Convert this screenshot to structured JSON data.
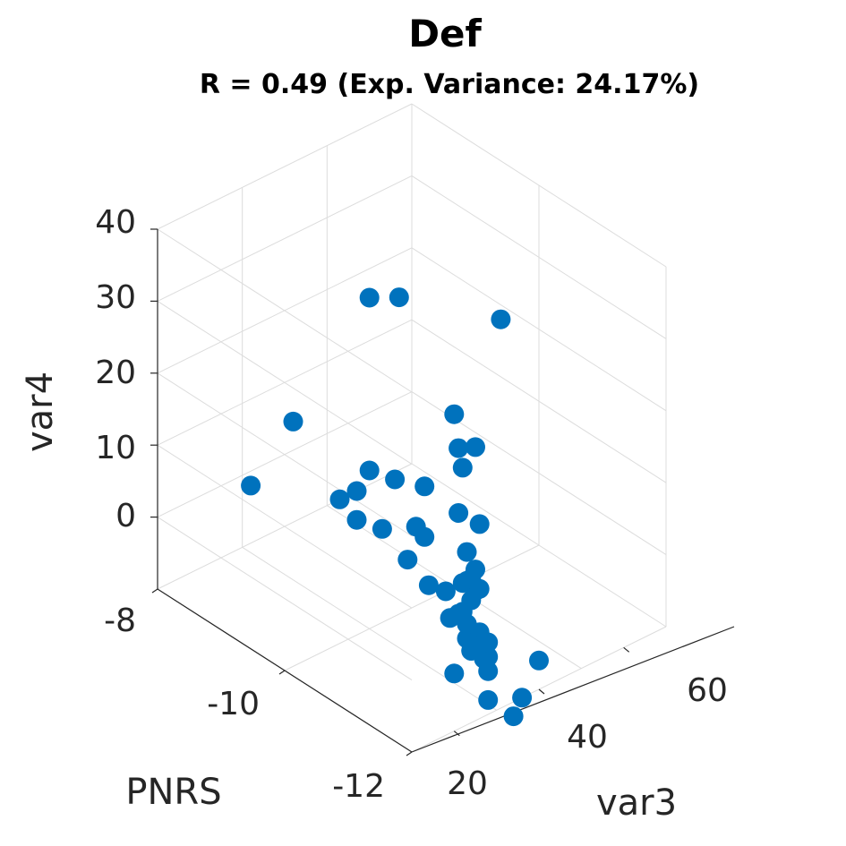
{
  "chart_data": {
    "type": "scatter",
    "title": "Def",
    "subtitle": "R = 0.49 (Exp. Variance: 24.17%)",
    "xlabel": "var3",
    "ylabel": "PNRS",
    "zlabel": "var4",
    "x_ticks": [
      "20",
      "40",
      "60"
    ],
    "y_ticks": [
      "-8",
      "-10",
      "-12"
    ],
    "z_ticks": [
      "0",
      "10",
      "20",
      "30",
      "40"
    ],
    "grid": true,
    "marker_color": "#0072BD",
    "points": [
      {
        "x": 36,
        "y": -9.6,
        "z": 32
      },
      {
        "x": 52,
        "y": -10.6,
        "z": 30
      },
      {
        "x": 58,
        "y": -8.6,
        "z": 20
      },
      {
        "x": 44,
        "y": -10.4,
        "z": 18
      },
      {
        "x": 40,
        "y": -11.0,
        "z": 18
      },
      {
        "x": 24,
        "y": -9.2,
        "z": 16
      },
      {
        "x": 26,
        "y": -8.4,
        "z": 2
      },
      {
        "x": 22,
        "y": -11.4,
        "z": 13
      },
      {
        "x": 30,
        "y": -10.0,
        "z": 12
      },
      {
        "x": 22,
        "y": -12.0,
        "z": 10
      },
      {
        "x": 18,
        "y": -12.0,
        "z": 10
      },
      {
        "x": 20,
        "y": -11.6,
        "z": 8
      },
      {
        "x": 30,
        "y": -10.6,
        "z": 3
      },
      {
        "x": 28,
        "y": -11.6,
        "z": 2
      },
      {
        "x": 27,
        "y": -10.0,
        "z": 6
      },
      {
        "x": 29,
        "y": -9.6,
        "z": 6
      },
      {
        "x": 33,
        "y": -9.6,
        "z": 6
      },
      {
        "x": 30,
        "y": -10.2,
        "z": 5
      },
      {
        "x": 35,
        "y": -10.4,
        "z": 5
      },
      {
        "x": 42,
        "y": -9.6,
        "z": 5
      },
      {
        "x": 46,
        "y": -9.8,
        "z": 4
      },
      {
        "x": 52,
        "y": -10.0,
        "z": 6
      },
      {
        "x": 54,
        "y": -9.8,
        "z": 7
      },
      {
        "x": 48,
        "y": -10.2,
        "z": 2
      },
      {
        "x": 44,
        "y": -10.6,
        "z": 0
      },
      {
        "x": 40,
        "y": -11.0,
        "z": 1
      },
      {
        "x": 50,
        "y": -10.4,
        "z": 1
      },
      {
        "x": 26,
        "y": -12.0,
        "z": 2
      },
      {
        "x": 24,
        "y": -12.0,
        "z": 0
      },
      {
        "x": 26,
        "y": -11.8,
        "z": 0
      },
      {
        "x": 28,
        "y": -12.0,
        "z": -2
      },
      {
        "x": 32,
        "y": -11.4,
        "z": -2
      },
      {
        "x": 30,
        "y": -11.6,
        "z": -4
      },
      {
        "x": 34,
        "y": -11.0,
        "z": -4
      },
      {
        "x": 36,
        "y": -11.0,
        "z": -4
      },
      {
        "x": 40,
        "y": -11.0,
        "z": -2
      },
      {
        "x": 42,
        "y": -10.8,
        "z": -2
      },
      {
        "x": 44,
        "y": -10.8,
        "z": -4
      },
      {
        "x": 36,
        "y": -11.2,
        "z": -1
      },
      {
        "x": 38,
        "y": -11.0,
        "z": 0
      },
      {
        "x": 26,
        "y": -11.6,
        "z": -6
      },
      {
        "x": 28,
        "y": -12.0,
        "z": -8
      },
      {
        "x": 34,
        "y": -11.6,
        "z": -8
      },
      {
        "x": 36,
        "y": -11.4,
        "z": -8
      },
      {
        "x": 38,
        "y": -11.2,
        "z": -8
      },
      {
        "x": 40,
        "y": -11.2,
        "z": -8
      },
      {
        "x": 44,
        "y": -10.6,
        "z": -10
      },
      {
        "x": 36,
        "y": -12.0,
        "z": -10
      },
      {
        "x": 34,
        "y": -12.0,
        "z": -12
      },
      {
        "x": 40,
        "y": -12.0,
        "z": -6
      }
    ]
  }
}
